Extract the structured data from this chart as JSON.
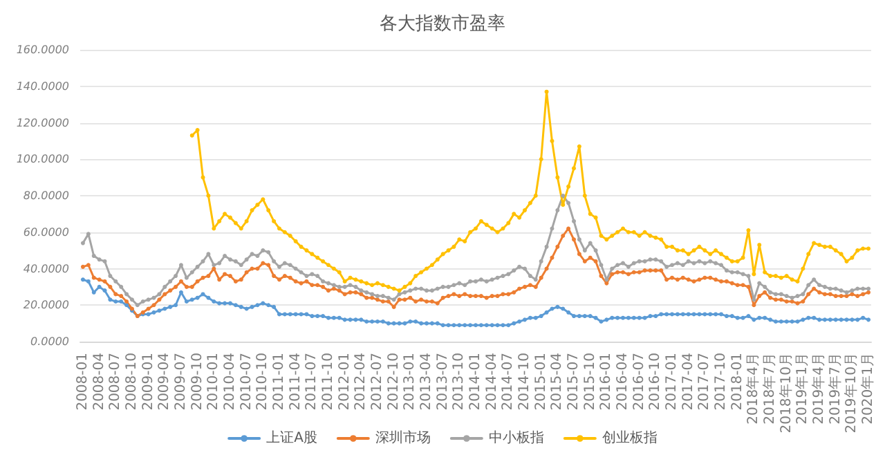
{
  "chart_data": {
    "type": "line",
    "title": "各大指数市盈率",
    "categories": [
      "2008-01",
      null,
      null,
      "2008-04",
      null,
      null,
      "2008-07",
      null,
      null,
      "2008-10",
      null,
      null,
      "2009-01",
      null,
      null,
      "2009-04",
      null,
      null,
      "2009-07",
      null,
      null,
      "2009-10",
      null,
      null,
      "2010-01",
      null,
      null,
      "2010-04",
      null,
      null,
      "2010-07",
      null,
      null,
      "2010-10",
      null,
      null,
      "2011-01",
      null,
      null,
      "2011-04",
      null,
      null,
      "2011-07",
      null,
      null,
      "2011-10",
      null,
      null,
      "2012-01",
      null,
      null,
      "2012-04",
      null,
      null,
      "2012-07",
      null,
      null,
      "2012-10",
      null,
      null,
      "2013-01",
      null,
      null,
      "2013-04",
      null,
      null,
      "2013-07",
      null,
      null,
      "2013-10",
      null,
      null,
      "2014-01",
      null,
      null,
      "2014-04",
      null,
      null,
      "2014-07",
      null,
      null,
      "2014-10",
      null,
      null,
      "2015-01",
      null,
      null,
      "2015-04",
      null,
      null,
      "2015-07",
      null,
      null,
      "2015-10",
      null,
      null,
      "2016-01",
      null,
      null,
      "2016-04",
      null,
      null,
      "2016-07",
      null,
      null,
      "2016-10",
      null,
      null,
      "2017-01",
      null,
      null,
      "2017-04",
      null,
      null,
      "2017-07",
      null,
      null,
      "2017-10",
      null,
      null,
      "2018-01",
      null,
      null,
      "2018年4月",
      null,
      null,
      "2018年7月",
      null,
      null,
      "2018年10月",
      null,
      null,
      "2019年1月",
      null,
      null,
      "2019年4月",
      null,
      null,
      "2019年7月",
      null,
      null,
      "2019年10月",
      null,
      null,
      "2020年1月"
    ],
    "series": [
      {
        "name": "上证A股",
        "color": "#5b9bd5",
        "values": [
          34,
          33,
          27,
          30,
          28,
          23,
          22,
          22,
          20,
          17,
          14,
          15,
          15,
          16,
          17,
          18,
          19,
          20,
          27,
          22,
          23,
          24,
          26,
          24,
          22,
          21,
          21,
          21,
          20,
          19,
          18,
          19,
          20,
          21,
          20,
          19,
          15,
          15,
          15,
          15,
          15,
          15,
          14,
          14,
          14,
          13,
          13,
          13,
          12,
          12,
          12,
          12,
          11,
          11,
          11,
          11,
          10,
          10,
          10,
          10,
          11,
          11,
          10,
          10,
          10,
          10,
          9,
          9,
          9,
          9,
          9,
          9,
          9,
          9,
          9,
          9,
          9,
          9,
          9,
          10,
          11,
          12,
          13,
          13,
          14,
          16,
          18,
          19,
          18,
          16,
          14,
          14,
          14,
          14,
          13,
          11,
          12,
          13,
          13,
          13,
          13,
          13,
          13,
          13,
          14,
          14,
          15,
          15,
          15,
          15,
          15,
          15,
          15,
          15,
          15,
          15,
          15,
          15,
          14,
          14,
          13,
          13,
          14,
          12,
          13,
          13,
          12,
          11,
          11,
          11,
          11,
          11,
          12,
          13,
          13,
          12,
          12,
          12,
          12,
          12,
          12,
          12,
          12,
          13,
          12
        ]
      },
      {
        "name": "深圳市场",
        "color": "#ed7d31",
        "values": [
          41,
          42,
          35,
          34,
          33,
          30,
          26,
          25,
          22,
          18,
          14,
          16,
          18,
          20,
          23,
          26,
          28,
          30,
          33,
          30,
          30,
          33,
          35,
          36,
          40,
          34,
          37,
          36,
          33,
          34,
          38,
          40,
          40,
          43,
          42,
          36,
          34,
          36,
          35,
          33,
          32,
          33,
          31,
          31,
          30,
          28,
          29,
          28,
          26,
          27,
          27,
          26,
          24,
          24,
          23,
          22,
          22,
          19,
          23,
          23,
          24,
          22,
          23,
          22,
          22,
          21,
          24,
          25,
          26,
          25,
          26,
          25,
          25,
          25,
          24,
          25,
          25,
          26,
          26,
          27,
          29,
          30,
          31,
          30,
          35,
          40,
          46,
          52,
          58,
          62,
          56,
          48,
          44,
          46,
          44,
          36,
          32,
          37,
          38,
          38,
          37,
          38,
          38,
          39,
          39,
          39,
          39,
          34,
          35,
          34,
          35,
          34,
          33,
          34,
          35,
          35,
          34,
          33,
          33,
          32,
          31,
          31,
          30,
          20,
          25,
          27,
          24,
          23,
          23,
          22,
          22,
          21,
          22,
          26,
          29,
          27,
          26,
          26,
          25,
          25,
          25,
          26,
          25,
          26,
          27
        ]
      },
      {
        "name": "中小板指",
        "color": "#a5a5a5",
        "values": [
          54,
          59,
          47,
          45,
          44,
          36,
          33,
          30,
          26,
          23,
          20,
          22,
          23,
          24,
          26,
          30,
          33,
          36,
          42,
          35,
          38,
          41,
          44,
          48,
          42,
          43,
          47,
          45,
          44,
          42,
          45,
          48,
          47,
          50,
          49,
          44,
          41,
          43,
          42,
          40,
          38,
          36,
          37,
          36,
          33,
          32,
          31,
          30,
          30,
          31,
          30,
          28,
          27,
          26,
          25,
          25,
          24,
          23,
          26,
          27,
          28,
          29,
          29,
          28,
          28,
          29,
          30,
          30,
          31,
          32,
          31,
          33,
          33,
          34,
          33,
          34,
          35,
          36,
          37,
          39,
          41,
          40,
          36,
          34,
          44,
          52,
          62,
          72,
          80,
          76,
          66,
          56,
          50,
          54,
          50,
          42,
          34,
          40,
          42,
          43,
          41,
          43,
          44,
          44,
          45,
          45,
          44,
          41,
          42,
          43,
          42,
          44,
          43,
          44,
          43,
          44,
          43,
          42,
          39,
          38,
          38,
          37,
          36,
          23,
          32,
          30,
          27,
          26,
          26,
          25,
          24,
          25,
          26,
          31,
          34,
          31,
          30,
          29,
          29,
          28,
          27,
          28,
          29,
          29,
          29
        ]
      },
      {
        "name": "创业板指",
        "color": "#ffc000",
        "values": [
          null,
          null,
          null,
          null,
          null,
          null,
          null,
          null,
          null,
          null,
          null,
          null,
          null,
          null,
          null,
          null,
          null,
          null,
          null,
          null,
          113,
          116,
          90,
          80,
          62,
          66,
          70,
          68,
          65,
          62,
          66,
          72,
          75,
          78,
          72,
          66,
          62,
          60,
          58,
          55,
          52,
          50,
          48,
          46,
          44,
          42,
          40,
          38,
          33,
          35,
          34,
          33,
          32,
          31,
          32,
          31,
          30,
          29,
          28,
          30,
          32,
          36,
          38,
          40,
          42,
          45,
          48,
          50,
          52,
          56,
          55,
          60,
          62,
          66,
          64,
          62,
          60,
          62,
          65,
          70,
          68,
          72,
          76,
          80,
          100,
          137,
          110,
          90,
          75,
          85,
          95,
          107,
          80,
          70,
          68,
          58,
          56,
          58,
          60,
          62,
          60,
          60,
          58,
          60,
          58,
          57,
          56,
          52,
          52,
          50,
          50,
          48,
          50,
          52,
          50,
          48,
          50,
          48,
          46,
          44,
          44,
          46,
          61,
          37,
          53,
          38,
          36,
          36,
          35,
          36,
          34,
          33,
          40,
          48,
          54,
          53,
          52,
          52,
          50,
          48,
          44,
          46,
          50,
          51,
          51
        ]
      }
    ],
    "ylim": [
      0,
      160
    ],
    "yticks": [
      {
        "value": 0,
        "label": "0.0000"
      },
      {
        "value": 20,
        "label": "20.0000"
      },
      {
        "value": 40,
        "label": "40.0000"
      },
      {
        "value": 60,
        "label": "60.0000"
      },
      {
        "value": 80,
        "label": "80.0000"
      },
      {
        "value": 100,
        "label": "100.0000"
      },
      {
        "value": 120,
        "label": "120.0000"
      },
      {
        "value": 140,
        "label": "140.0000"
      },
      {
        "value": 160,
        "label": "160.0000"
      }
    ],
    "grid": "y",
    "legend": "bottom",
    "marker": "circle",
    "line_style": "solid"
  }
}
